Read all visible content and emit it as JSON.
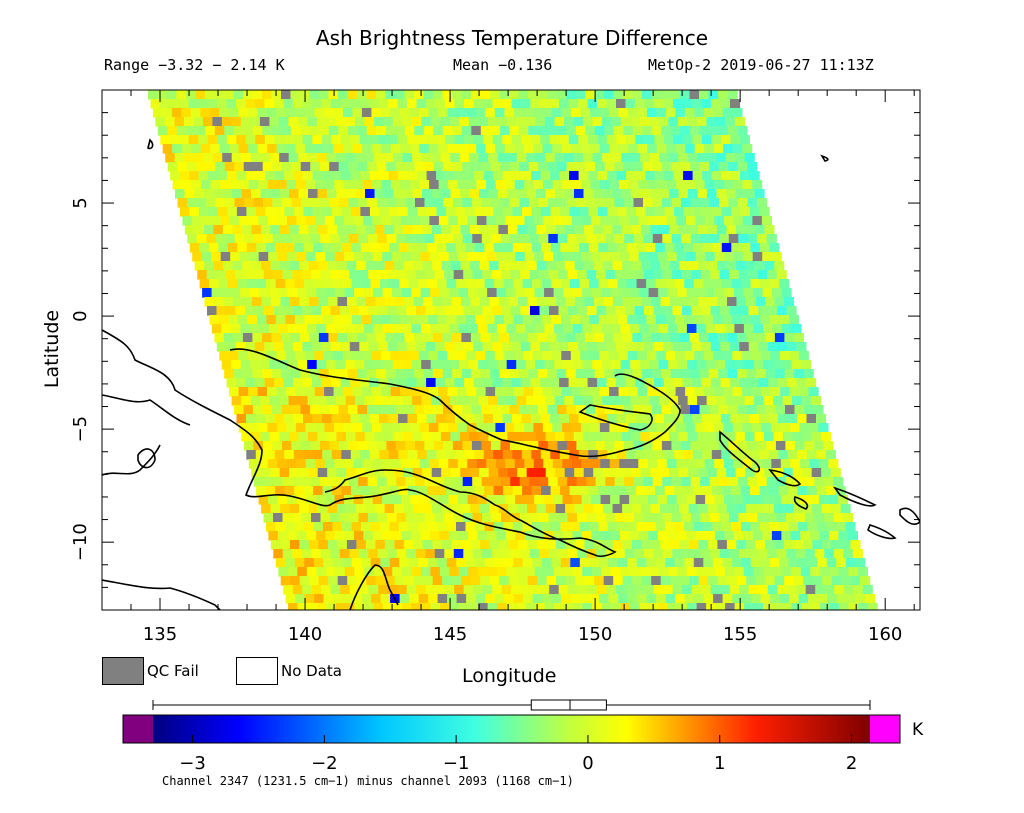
{
  "title": "Ash Brightness Temperature Difference",
  "header": {
    "range": "Range −3.32 − 2.14 K",
    "mean": "Mean −0.136",
    "satellite_time": "MetOp-2 2019-06-27 11:13Z"
  },
  "axes": {
    "xlabel": "Longitude",
    "ylabel": "Latitude",
    "x_ticks": [
      "135",
      "140",
      "145",
      "150",
      "155",
      "160"
    ],
    "y_ticks": [
      "5",
      "0",
      "−5",
      "−10"
    ],
    "x_range": [
      133,
      161.2
    ],
    "y_range": [
      -13,
      10
    ]
  },
  "legend": {
    "qc_fail": "QC Fail",
    "no_data": "No Data",
    "qc_color": "#808080"
  },
  "colorbar": {
    "unit": "K",
    "range": [
      -3.3,
      2.14
    ],
    "ticks": [
      "−3",
      "−2",
      "−1",
      "0",
      "1",
      "2"
    ],
    "under_color": "#800080",
    "over_color": "#ff00ff",
    "mean_box": [
      -0.43,
      0.14
    ],
    "mean_mid": -0.136
  },
  "footnote": "Channel 2347 (1231.5 cm−1) minus channel 2093 (1168 cm−1)"
}
